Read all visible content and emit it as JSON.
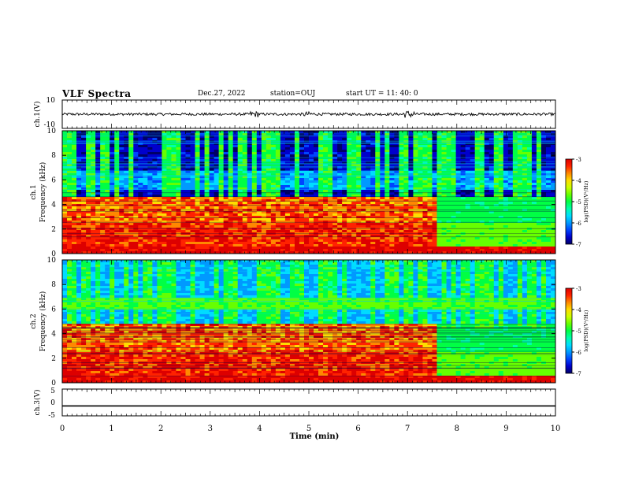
{
  "header": {
    "title": "VLF Spectra",
    "date": "Dec.27, 2022",
    "station": "station=OUJ",
    "start": "start UT =  11: 40: 0"
  },
  "colormap": {
    "colors": [
      "#000066",
      "#0000cc",
      "#0044ff",
      "#0099ff",
      "#00ddff",
      "#00ffaa",
      "#00ff44",
      "#66ff00",
      "#ccff00",
      "#ffdd00",
      "#ff8800",
      "#ff2200",
      "#dd0000",
      "#ffffff"
    ]
  },
  "chart_data": [
    {
      "type": "line",
      "ylabel": "ch.1(V)",
      "ylim": [
        -10,
        10
      ],
      "ytick_labels": [
        "10",
        "-10"
      ],
      "xlim": [
        0,
        10
      ],
      "series": [
        {
          "values_summary": "waveform centred near 0 V, amplitude about ±1 V, larger bursts near 3.9, 5.0 and 7.0 min"
        }
      ]
    },
    {
      "type": "heatmap",
      "ylabel": "ch.1\nFrequency (kHz)",
      "ylim": [
        0,
        10
      ],
      "ytick_labels": [
        "0",
        "2",
        "4",
        "6",
        "8",
        "10"
      ],
      "xlim": [
        0,
        10
      ],
      "colorbar": {
        "label": "log(PSD)(V²/Hz)",
        "range": [
          -7,
          -3
        ],
        "tick_labels": [
          "-3",
          "-4",
          "-5",
          "-6",
          "-7"
        ]
      },
      "features": {
        "strong_band_kHz": [
          0.3,
          4.6
        ],
        "band_end_min": 7.6,
        "weak_band_kHz": [
          5.2,
          6.8
        ],
        "noise_floor_log": -6.6
      }
    },
    {
      "type": "heatmap",
      "ylabel": "ch.2\nFrequency (kHz)",
      "ylim": [
        0,
        10
      ],
      "ytick_labels": [
        "0",
        "2",
        "4",
        "6",
        "8",
        "10"
      ],
      "xlim": [
        0,
        10
      ],
      "colorbar": {
        "label": "log(PSD)(V²/Hz)",
        "range": [
          -7,
          -3
        ],
        "tick_labels": [
          "-3",
          "-4",
          "-5",
          "-6",
          "-7"
        ]
      },
      "features": {
        "strong_band_kHz": [
          0.3,
          4.8
        ],
        "band_end_min": 7.6,
        "green_band_kHz": [
          6.0,
          7.0
        ],
        "noise_floor_log": -5.8
      }
    },
    {
      "type": "line",
      "ylabel": "ch.3(V)",
      "ylim": [
        -5,
        5
      ],
      "ytick_labels": [
        "5",
        "0",
        "-5"
      ],
      "xlim": [
        0,
        10
      ],
      "series": [
        {
          "values_summary": "flat line at about -1.3 V"
        }
      ]
    }
  ],
  "xaxis": {
    "label": "Time (min)",
    "tick_labels": [
      "0",
      "1",
      "2",
      "3",
      "4",
      "5",
      "6",
      "7",
      "8",
      "9",
      "10"
    ]
  }
}
